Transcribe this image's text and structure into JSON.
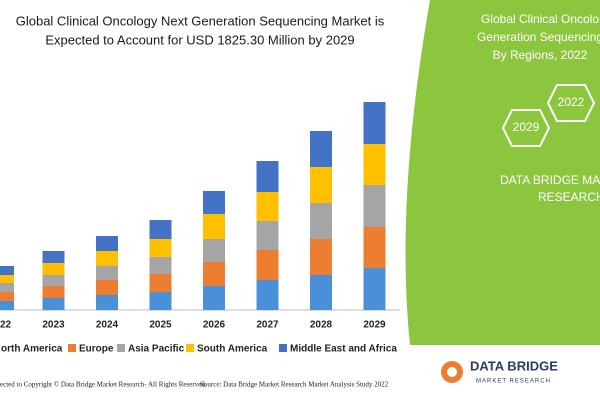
{
  "chart_data": {
    "type": "bar",
    "stacked": true,
    "title_lines": [
      "Global Clinical Oncology Next Generation Sequencing Market is",
      "Expected to Account for USD 1825.30 Million by 2029"
    ],
    "categories": [
      "22",
      "2023",
      "2024",
      "2025",
      "2026",
      "2027",
      "2028",
      "2029"
    ],
    "series": [
      {
        "name": "orth America",
        "color": "#4a90d9",
        "values": [
          9,
          12,
          15,
          18,
          24,
          30,
          35,
          42
        ]
      },
      {
        "name": "Europe",
        "color": "#ed7d31",
        "values": [
          9,
          12,
          15,
          18,
          24,
          30,
          36,
          41
        ]
      },
      {
        "name": "Asia Pacific",
        "color": "#a5a5a5",
        "values": [
          9,
          11,
          14,
          17,
          23,
          29,
          36,
          42
        ]
      },
      {
        "name": "South America",
        "color": "#ffc000",
        "values": [
          8,
          12,
          15,
          18,
          25,
          29,
          36,
          41
        ]
      },
      {
        "name": "Middle East and Africa",
        "color": "#4472c4",
        "values": [
          9,
          12,
          15,
          19,
          23,
          31,
          36,
          42
        ]
      }
    ],
    "legend": "bottom"
  },
  "side_panel": {
    "title_lines": [
      "Global Clinical Oncolo",
      "Generation Sequencing",
      "By Regions, 2022"
    ],
    "hexagons": [
      "2029",
      "2022"
    ],
    "brand_lines": [
      "DATA BRIDGE MA",
      "RESEARCH"
    ]
  },
  "logo": {
    "name": "DATA BRIDGE",
    "tagline": "MARKET RESEARCH"
  },
  "footer": {
    "copyright": "ected to Copyright © Data Bridge Market Research- All Rights Reserved.",
    "source": "Source: Data Bridge Market Research Market Analysis Study 2022"
  }
}
